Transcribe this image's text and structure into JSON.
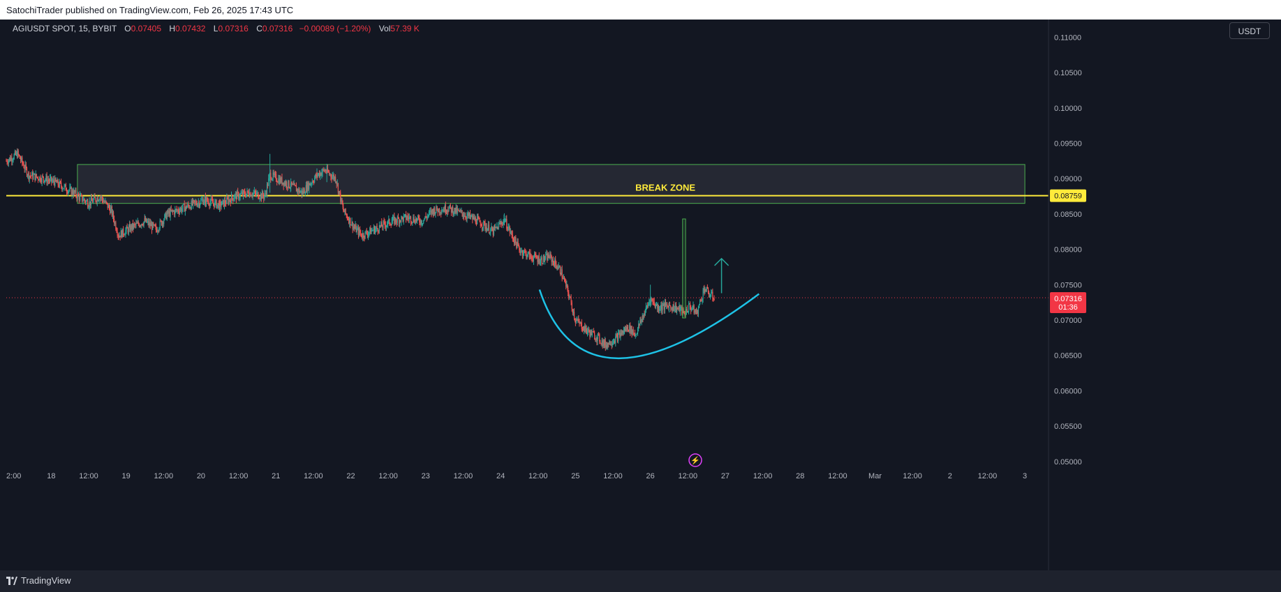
{
  "header": {
    "published": "SatochiTrader published on TradingView.com, Feb 26, 2025 17:43 UTC"
  },
  "legend": {
    "symbol": "AGIUSDT SPOT, 15, BYBIT",
    "o_label": "O",
    "o_value": "0.07405",
    "h_label": "H",
    "h_value": "0.07432",
    "l_label": "L",
    "l_value": "0.07316",
    "c_label": "C",
    "c_value": "0.07316",
    "change": "−0.00089 (−1.20%)",
    "vol_label": "Vol",
    "vol_value": "57.39 K"
  },
  "currency": "USDT",
  "footer": {
    "brand": "TradingView"
  },
  "colors": {
    "background": "#131722",
    "up": "#26a69a",
    "down": "#ef5350",
    "break_zone_line": "#ffeb3b",
    "zone_border": "#4caf50",
    "curve": "#1ec2e6",
    "price_tag": "#f23645",
    "event_icon": "#e040fb"
  },
  "chart_data": {
    "type": "candlestick",
    "symbol": "AGIUSDT",
    "timeframe": "15",
    "exchange": "BYBIT",
    "y_axis": {
      "ticks": [
        "0.11000",
        "0.10500",
        "0.10000",
        "0.09500",
        "0.09000",
        "0.08500",
        "0.08000",
        "0.07500",
        "0.07000",
        "0.06500",
        "0.06000",
        "0.05500",
        "0.05000"
      ],
      "ylim": [
        0.049,
        0.1125
      ]
    },
    "x_axis": {
      "ticks": [
        "2:00",
        "18",
        "12:00",
        "19",
        "12:00",
        "20",
        "12:00",
        "21",
        "12:00",
        "22",
        "12:00",
        "23",
        "12:00",
        "24",
        "12:00",
        "25",
        "12:00",
        "26",
        "12:00",
        "27",
        "12:00",
        "28",
        "12:00",
        "Mar",
        "12:00",
        "2",
        "12:00",
        "3"
      ],
      "xlim_days": [
        17.4,
        31.4
      ]
    },
    "price_path": [
      [
        17.4,
        0.0925
      ],
      [
        17.55,
        0.0935
      ],
      [
        17.7,
        0.0905
      ],
      [
        17.9,
        0.09
      ],
      [
        18.05,
        0.0895
      ],
      [
        18.3,
        0.088
      ],
      [
        18.5,
        0.0865
      ],
      [
        18.65,
        0.0875
      ],
      [
        18.8,
        0.0855
      ],
      [
        18.9,
        0.082
      ],
      [
        19.05,
        0.083
      ],
      [
        19.25,
        0.084
      ],
      [
        19.4,
        0.0828
      ],
      [
        19.55,
        0.085
      ],
      [
        19.8,
        0.086
      ],
      [
        20.05,
        0.087
      ],
      [
        20.25,
        0.0862
      ],
      [
        20.45,
        0.0875
      ],
      [
        20.65,
        0.088
      ],
      [
        20.85,
        0.0875
      ],
      [
        20.92,
        0.0905
      ],
      [
        21.05,
        0.0898
      ],
      [
        21.2,
        0.089
      ],
      [
        21.35,
        0.088
      ],
      [
        21.55,
        0.0905
      ],
      [
        21.65,
        0.0912
      ],
      [
        21.8,
        0.09
      ],
      [
        21.9,
        0.0855
      ],
      [
        22.05,
        0.083
      ],
      [
        22.15,
        0.082
      ],
      [
        22.35,
        0.083
      ],
      [
        22.55,
        0.084
      ],
      [
        22.75,
        0.0845
      ],
      [
        22.95,
        0.084
      ],
      [
        23.1,
        0.0855
      ],
      [
        23.3,
        0.0858
      ],
      [
        23.5,
        0.085
      ],
      [
        23.7,
        0.084
      ],
      [
        23.9,
        0.0825
      ],
      [
        24.05,
        0.0842
      ],
      [
        24.15,
        0.082
      ],
      [
        24.25,
        0.08
      ],
      [
        24.4,
        0.079
      ],
      [
        24.55,
        0.0785
      ],
      [
        24.65,
        0.079
      ],
      [
        24.8,
        0.077
      ],
      [
        24.9,
        0.074
      ],
      [
        25.0,
        0.07
      ],
      [
        25.15,
        0.0685
      ],
      [
        25.3,
        0.0675
      ],
      [
        25.4,
        0.0665
      ],
      [
        25.55,
        0.0675
      ],
      [
        25.7,
        0.069
      ],
      [
        25.8,
        0.068
      ],
      [
        25.9,
        0.0705
      ],
      [
        26.0,
        0.073
      ],
      [
        26.1,
        0.0718
      ],
      [
        26.25,
        0.072
      ],
      [
        26.4,
        0.0715
      ],
      [
        26.45,
        0.0708
      ],
      [
        26.52,
        0.072
      ],
      [
        26.62,
        0.071
      ],
      [
        26.72,
        0.0745
      ],
      [
        26.8,
        0.0735
      ],
      [
        26.86,
        0.0732
      ]
    ],
    "last_price": "0.07316",
    "countdown": "01:36",
    "annotations": {
      "break_zone_label": "BREAK ZONE",
      "break_zone_price": "0.08759",
      "break_zone_level": 0.08759,
      "zone_box": {
        "x_from": 18.35,
        "x_to": 31.0,
        "price_low": 0.0865,
        "price_high": 0.092
      },
      "rounded_bottom_curve": [
        [
          24.52,
          0.0743
        ],
        [
          25.55,
          0.0646
        ],
        [
          27.45,
          0.0737
        ]
      ],
      "spike_box": {
        "x_from": 26.43,
        "x_to": 26.47,
        "price_low": 0.0703,
        "price_high": 0.0843
      },
      "arrow": {
        "x": 26.95,
        "price_from": 0.0738,
        "price_to": 0.0787
      }
    },
    "grid": false
  }
}
